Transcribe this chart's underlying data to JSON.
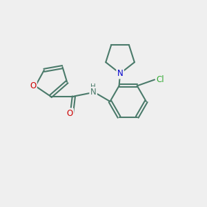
{
  "bg_color": "#efefef",
  "bond_color": "#4a7a6a",
  "bond_width": 1.5,
  "atom_colors": {
    "O": "#cc0000",
    "N_pyr": "#0000cc",
    "N_amide": "#4a7a6a",
    "Cl": "#33aa33",
    "H": "#4a7a6a"
  },
  "font_size_atom": 8.5,
  "font_size_small": 7.5
}
